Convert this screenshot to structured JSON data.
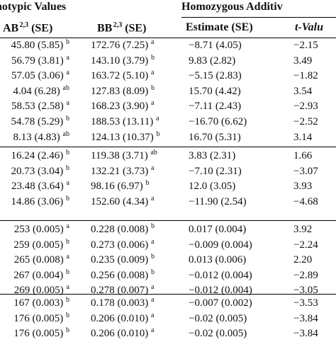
{
  "header": {
    "phenotypic": "notypic Values",
    "homozygous": "Homozygous Additiv",
    "col_ab": "AB",
    "col_ab_sup": "2,3",
    "col_ab_se": "(SE)",
    "col_bb": "BB",
    "col_bb_sup": "2,3",
    "col_bb_se": "(SE)",
    "col_est": "Estimate (SE)",
    "col_t": "t-Valu"
  },
  "groups": [
    {
      "rows": [
        {
          "ab": "45.80 (5.85)",
          "ab_sup": "b",
          "bb": "172.76 (7.25)",
          "bb_sup": "a",
          "est": "−8.71 (4.05)",
          "t": "−2.15"
        },
        {
          "ab": "56.79 (3.81)",
          "ab_sup": "a",
          "bb": "143.10 (3.79)",
          "bb_sup": "b",
          "est": "9.83 (2.82)",
          "t": "3.49"
        },
        {
          "ab": "57.05 (3.06)",
          "ab_sup": "a",
          "bb": "163.72 (5.10)",
          "bb_sup": "a",
          "est": "−5.15 (2.83)",
          "t": "−1.82"
        },
        {
          "ab": "4.04 (6.28)",
          "ab_sup": "ab",
          "bb": "127.83 (8.09)",
          "bb_sup": "b",
          "est": "15.70 (4.42)",
          "t": "3.54"
        },
        {
          "ab": "58.53 (2.58)",
          "ab_sup": "a",
          "bb": "168.23 (3.90)",
          "bb_sup": "a",
          "est": "−7.11 (2.43)",
          "t": "−2.93"
        },
        {
          "ab": "54.78 (5.29)",
          "ab_sup": "b",
          "bb": "188.53 (13.11)",
          "bb_sup": "a",
          "est": "−16.70 (6.62)",
          "t": "−2.52"
        },
        {
          "ab": "8.13 (4.83)",
          "ab_sup": "ab",
          "bb": "124.13 (10.37)",
          "bb_sup": "b",
          "est": "16.70 (5.31)",
          "t": "3.14"
        }
      ]
    },
    {
      "rows": [
        {
          "ab": "16.24 (2.46)",
          "ab_sup": "b",
          "bb": "119.38 (3.71)",
          "bb_sup": "ab",
          "est": "3.83 (2.31)",
          "t": "1.66"
        },
        {
          "ab": "20.73 (3.04)",
          "ab_sup": "b",
          "bb": "132.21 (3.73)",
          "bb_sup": "a",
          "est": "−7.10 (2.31)",
          "t": "−3.07"
        },
        {
          "ab": "23.48 (3.64)",
          "ab_sup": "a",
          "bb": "98.16 (6.97)",
          "bb_sup": "b",
          "est": "12.0 (3.05)",
          "t": "3.93"
        },
        {
          "ab": "14.86 (3.06)",
          "ab_sup": "b",
          "bb": "152.60 (4.34)",
          "bb_sup": "a",
          "est": "−11.90 (2.54)",
          "t": "−4.68"
        }
      ]
    },
    {
      "rows": [
        {
          "ab": "253 (0.005)",
          "ab_sup": "a",
          "bb": "0.228 (0.008)",
          "bb_sup": "b",
          "est": "0.017 (0.004)",
          "t": "3.92"
        },
        {
          "ab": "259 (0.005)",
          "ab_sup": "b",
          "bb": "0.273 (0.006)",
          "bb_sup": "a",
          "est": "−0.009 (0.004)",
          "t": "−2.24"
        },
        {
          "ab": "265 (0.008)",
          "ab_sup": "a",
          "bb": "0.235 (0.009)",
          "bb_sup": "b",
          "est": "0.013 (0.006)",
          "t": "2.20"
        },
        {
          "ab": "267 (0.004)",
          "ab_sup": "b",
          "bb": "0.256 (0.008)",
          "bb_sup": "b",
          "est": "−0.012 (0.004)",
          "t": "−2.89"
        },
        {
          "ab": "269 (0.005)",
          "ab_sup": "a",
          "bb": "0.278 (0.007)",
          "bb_sup": "a",
          "est": "−0.012 (0.004)",
          "t": "−3.05"
        }
      ]
    },
    {
      "rows": [
        {
          "ab": "167 (0.003)",
          "ab_sup": "b",
          "bb": "0.178 (0.003)",
          "bb_sup": "a",
          "est": "−0.007 (0.002)",
          "t": "−3.53"
        },
        {
          "ab": "176 (0.005)",
          "ab_sup": "b",
          "bb": "0.206 (0.010)",
          "bb_sup": "a",
          "est": "−0.02 (0.005)",
          "t": "−3.84"
        },
        {
          "ab": "176 (0.005)",
          "ab_sup": "b",
          "bb": "0.206 (0.010)",
          "bb_sup": "a",
          "est": "−0.02 (0.005)",
          "t": "−3.84"
        }
      ]
    }
  ]
}
